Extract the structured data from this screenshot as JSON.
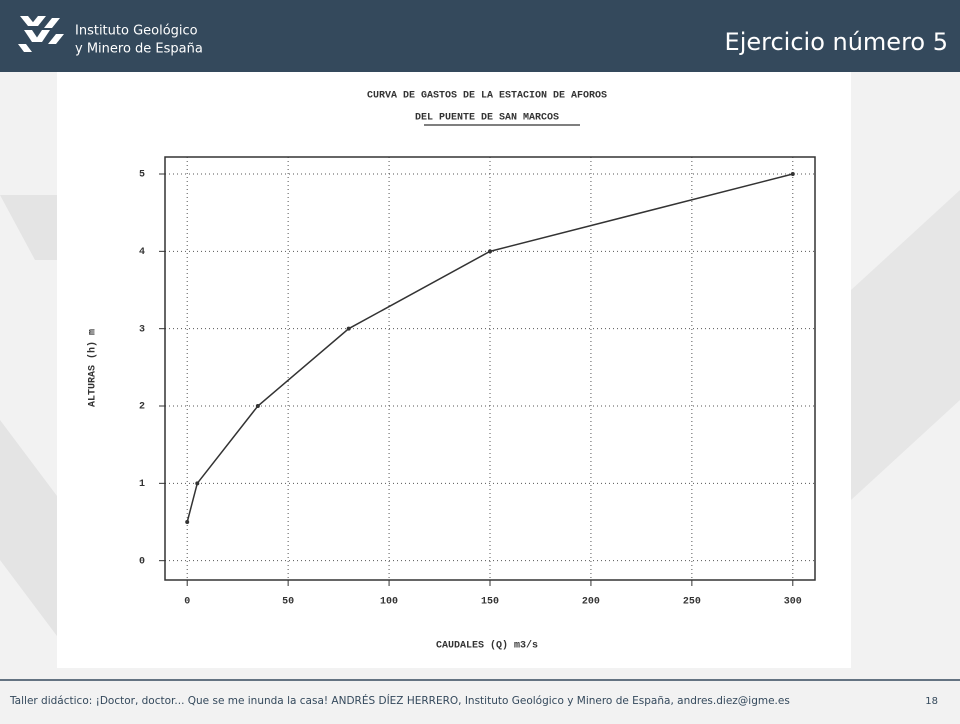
{
  "header": {
    "logo_line1": "Instituto Geológico",
    "logo_line2": "y Minero de España",
    "title": "Ejercicio número 5"
  },
  "chart_data": {
    "type": "line",
    "title": "CURVA DE GASTOS DE LA ESTACION DE AFOROS",
    "subtitle": "DEL PUENTE DE SAN MARCOS",
    "x_label": "CAUDALES (Q) m3/s",
    "y_label": "ALTURAS (h) m",
    "x": [
      0,
      5,
      35,
      80,
      150,
      300
    ],
    "series": [
      {
        "name": "Curva de gastos",
        "color": "#333333",
        "values": [
          0.5,
          1,
          2,
          3,
          4,
          5
        ]
      }
    ],
    "xlim": [
      -11,
      311
    ],
    "ylim": [
      -0.25,
      5.22
    ],
    "xticks": [
      0,
      50,
      100,
      150,
      200,
      250,
      300
    ],
    "yticks": [
      0,
      1,
      2,
      3,
      4,
      5
    ],
    "grid": true
  },
  "footer": {
    "text": "Taller didáctico: ¡Doctor, doctor... Que se me inunda la casa!  ANDRÉS DÍEZ HERRERO, Instituto Geológico y Minero de España, andres.diez@igme.es",
    "page": "18"
  }
}
